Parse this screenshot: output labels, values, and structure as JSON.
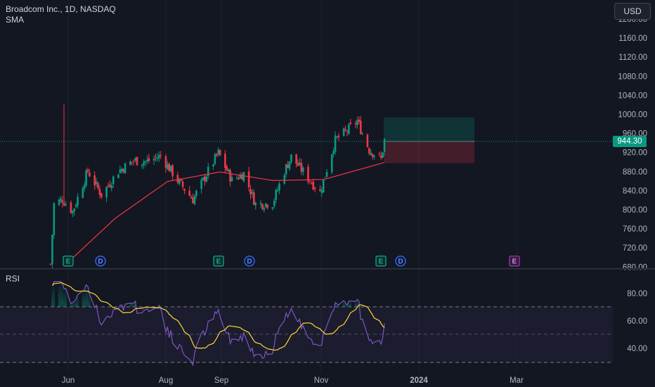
{
  "header": {
    "title": "Broadcom Inc., 1D, NASDAQ",
    "indicator": "SMA"
  },
  "currency": "USD",
  "current_price": "944.30",
  "price_axis": [
    "1200.00",
    "1160.00",
    "1120.00",
    "1080.00",
    "1040.00",
    "1000.00",
    "960.00",
    "920.00",
    "880.00",
    "840.00",
    "800.00",
    "760.00",
    "720.00",
    "680.00"
  ],
  "rsi": {
    "label": "RSI",
    "axis": [
      "80.00",
      "60.00",
      "40.00"
    ]
  },
  "time_axis": [
    "Jun",
    "Aug",
    "Sep",
    "Nov",
    "2024",
    "Mar"
  ],
  "events": [
    {
      "type": "earnings",
      "label": "E"
    },
    {
      "type": "dividend",
      "label": "D"
    },
    {
      "type": "earnings",
      "label": "E"
    },
    {
      "type": "dividend",
      "label": "D"
    },
    {
      "type": "earnings",
      "label": "E"
    },
    {
      "type": "dividend",
      "label": "D"
    },
    {
      "type": "earnings-upcoming",
      "label": "E"
    }
  ],
  "colors": {
    "bg": "#131722",
    "up": "#089981",
    "down": "#f23645",
    "sma": "#f23645",
    "rsi": "#7e57c2",
    "rsi_ma": "#fdd835",
    "grid": "#1e222d"
  },
  "chart_data": {
    "type": "candlestick",
    "symbol": "Broadcom Inc.",
    "interval": "1D",
    "exchange": "NASDAQ",
    "ylim": [
      680,
      1220
    ],
    "path_points_close": [
      [
        "2023-05-24",
        684
      ],
      [
        "2023-05-26",
        810
      ],
      [
        "2023-05-31",
        820
      ],
      [
        "2023-06-06",
        795
      ],
      [
        "2023-06-15",
        880
      ],
      [
        "2023-06-23",
        830
      ],
      [
        "2023-07-03",
        880
      ],
      [
        "2023-07-12",
        902
      ],
      [
        "2023-07-20",
        900
      ],
      [
        "2023-07-28",
        912
      ],
      [
        "2023-08-07",
        860
      ],
      [
        "2023-08-16",
        820
      ],
      [
        "2023-08-25",
        880
      ],
      [
        "2023-08-31",
        918
      ],
      [
        "2023-09-08",
        860
      ],
      [
        "2023-09-15",
        875
      ],
      [
        "2023-09-22",
        810
      ],
      [
        "2023-10-02",
        812
      ],
      [
        "2023-10-09",
        880
      ],
      [
        "2023-10-13",
        910
      ],
      [
        "2023-10-23",
        865
      ],
      [
        "2023-10-30",
        835
      ],
      [
        "2023-11-08",
        945
      ],
      [
        "2023-11-15",
        965
      ],
      [
        "2023-11-21",
        985
      ],
      [
        "2023-11-28",
        925
      ],
      [
        "2023-12-05",
        905
      ],
      [
        "2023-12-07",
        944.3
      ]
    ],
    "sma_points": [
      [
        "2023-06-01",
        680
      ],
      [
        "2023-07-01",
        780
      ],
      [
        "2023-08-01",
        858
      ],
      [
        "2023-09-01",
        878
      ],
      [
        "2023-10-02",
        860
      ],
      [
        "2023-11-01",
        862
      ],
      [
        "2023-12-07",
        898
      ]
    ],
    "rsi_range": [
      25,
      85
    ],
    "rsi_levels": [
      70,
      50,
      30
    ]
  }
}
